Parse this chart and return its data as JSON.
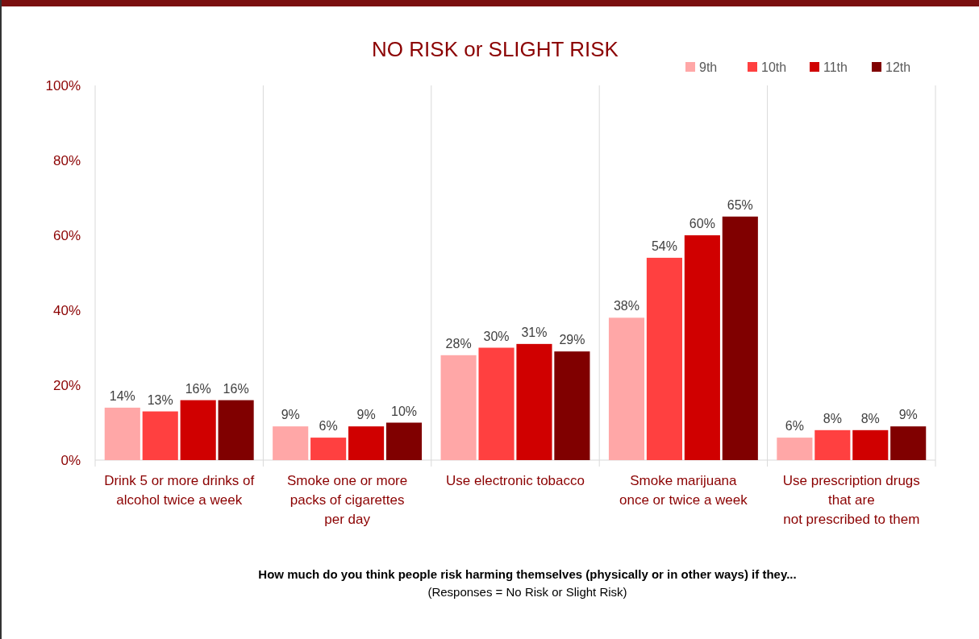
{
  "chart_data": {
    "type": "bar",
    "title": "NO RISK or SLIGHT RISK",
    "categories": [
      "Drink 5 or more drinks of\nalcohol twice a week",
      "Smoke one or more\npacks of cigarettes\nper day",
      "Use electronic tobacco",
      "Smoke marijuana\nonce or twice a week",
      "Use prescription drugs\nthat are\nnot prescribed to them"
    ],
    "series": [
      {
        "name": "9th",
        "color": "#ffa7a7",
        "values": [
          14,
          9,
          28,
          38,
          6
        ],
        "value_labels": [
          "14%",
          "9%",
          "28%",
          "38%",
          "6%"
        ]
      },
      {
        "name": "10th",
        "color": "#ff4040",
        "values": [
          13,
          6,
          30,
          54,
          8
        ],
        "value_labels": [
          "13%",
          "6%",
          "30%",
          "54%",
          "8%"
        ]
      },
      {
        "name": "11th",
        "color": "#d00000",
        "values": [
          16,
          9,
          31,
          60,
          8
        ],
        "value_labels": [
          "16%",
          "9%",
          "31%",
          "60%",
          "8%"
        ]
      },
      {
        "name": "12th",
        "color": "#800000",
        "values": [
          16,
          10,
          29,
          65,
          9
        ],
        "value_labels": [
          "16%",
          "10%",
          "29%",
          "65%",
          "9%"
        ]
      }
    ],
    "ylim": [
      0,
      100
    ],
    "yticks": [
      {
        "value": 0,
        "label": "0%"
      },
      {
        "value": 20,
        "label": "20%"
      },
      {
        "value": 40,
        "label": "40%"
      },
      {
        "value": 60,
        "label": "60%"
      },
      {
        "value": 80,
        "label": "80%"
      },
      {
        "value": 100,
        "label": "100%"
      }
    ],
    "xlabel": "How much do you think people risk harming themselves (physically or in other ways) if they...",
    "annotations": [
      "(Responses = No Risk or Slight Risk)"
    ],
    "grid": "x",
    "legend": "top right"
  }
}
